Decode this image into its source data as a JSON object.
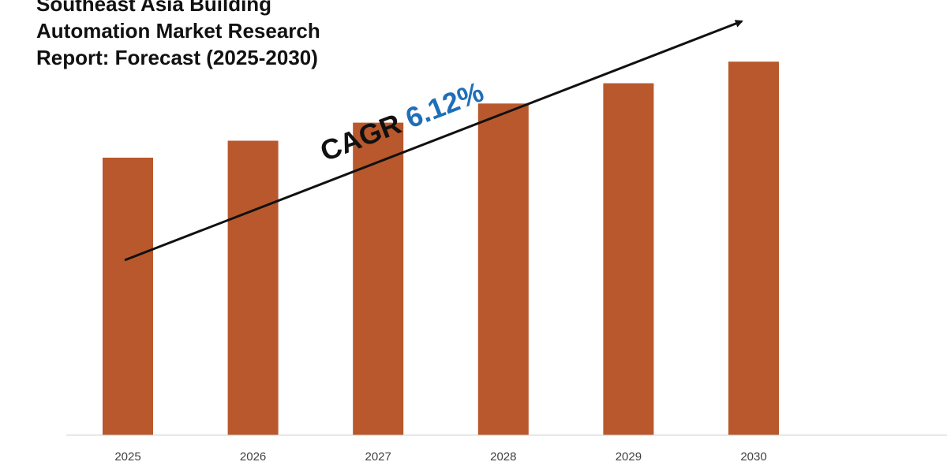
{
  "title_lines": [
    "Southeast Asia Building",
    "Automation Market Research",
    "Report: Forecast (2025-2030)"
  ],
  "annotation": {
    "prefix": "CAGR",
    "value": "6.12%",
    "prefix_color": "#111111",
    "value_color": "#1f6fb8"
  },
  "chart_data": {
    "type": "bar",
    "categories": [
      "2025",
      "2026",
      "2027",
      "2028",
      "2029",
      "2030"
    ],
    "values": [
      100,
      106.12,
      112.62,
      119.51,
      126.83,
      134.59
    ],
    "ylim": [
      0,
      150
    ],
    "grid": false,
    "legend": "none",
    "bar_color": "#b9582c",
    "axis_color": "#d0d0d0"
  }
}
